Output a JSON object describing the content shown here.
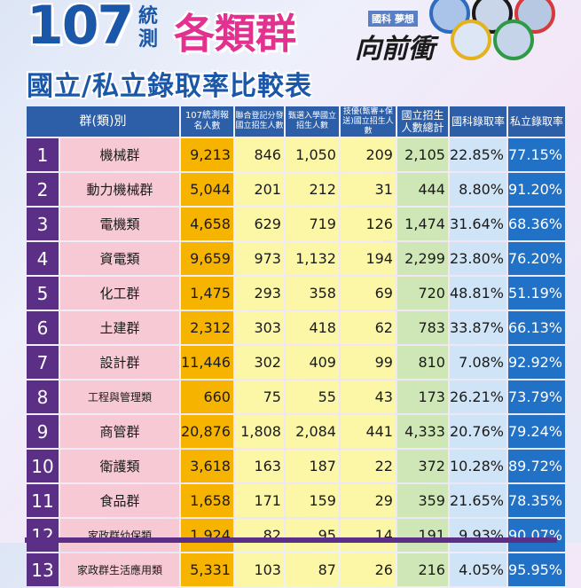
{
  "header": {
    "year": "107",
    "exam": "統測",
    "groups": "各類群",
    "title": "國立/私立錄取率比較表",
    "slogan": "國科 夢想",
    "brand": "向前衝"
  },
  "colors": {
    "title_blue": "#1b57a8",
    "title_pink": "#e2318f",
    "number_cell": "#5b2f86",
    "name_cell": "#f6c9d5",
    "registrants_cell": "#f6b400",
    "quota_cells": "#fbf7a6",
    "total_cell": "#cfe7b6",
    "public_rate_cell": "#cfe4f6",
    "private_rate_cell": "#2171c7"
  },
  "table": {
    "headers": {
      "group": "群(類)別",
      "registrants": "107統測報名人數",
      "joint": "聯合登記分發國立招生人數",
      "selection": "甄選入學國立招生人數",
      "skills": "技優(甄審+保送)國立招生人數",
      "total": "國立招生人數總計",
      "public_rate": "國科錄取率",
      "private_rate": "私立錄取率"
    },
    "rows": [
      {
        "no": "1",
        "name": "機械群",
        "registrants": "9,213",
        "joint": "846",
        "selection": "1,050",
        "skills": "209",
        "total": "2,105",
        "public_rate": "22.85%",
        "private_rate": "77.15%"
      },
      {
        "no": "2",
        "name": "動力機械群",
        "registrants": "5,044",
        "joint": "201",
        "selection": "212",
        "skills": "31",
        "total": "444",
        "public_rate": "8.80%",
        "private_rate": "91.20%"
      },
      {
        "no": "3",
        "name": "電機類",
        "registrants": "4,658",
        "joint": "629",
        "selection": "719",
        "skills": "126",
        "total": "1,474",
        "public_rate": "31.64%",
        "private_rate": "68.36%"
      },
      {
        "no": "4",
        "name": "資電類",
        "registrants": "9,659",
        "joint": "973",
        "selection": "1,132",
        "skills": "194",
        "total": "2,299",
        "public_rate": "23.80%",
        "private_rate": "76.20%"
      },
      {
        "no": "5",
        "name": "化工群",
        "registrants": "1,475",
        "joint": "293",
        "selection": "358",
        "skills": "69",
        "total": "720",
        "public_rate": "48.81%",
        "private_rate": "51.19%"
      },
      {
        "no": "6",
        "name": "土建群",
        "registrants": "2,312",
        "joint": "303",
        "selection": "418",
        "skills": "62",
        "total": "783",
        "public_rate": "33.87%",
        "private_rate": "66.13%"
      },
      {
        "no": "7",
        "name": "設計群",
        "registrants": "11,446",
        "joint": "302",
        "selection": "409",
        "skills": "99",
        "total": "810",
        "public_rate": "7.08%",
        "private_rate": "92.92%"
      },
      {
        "no": "8",
        "name": "工程與管理類",
        "registrants": "660",
        "joint": "75",
        "selection": "55",
        "skills": "43",
        "total": "173",
        "public_rate": "26.21%",
        "private_rate": "73.79%"
      },
      {
        "no": "9",
        "name": "商管群",
        "registrants": "20,876",
        "joint": "1,808",
        "selection": "2,084",
        "skills": "441",
        "total": "4,333",
        "public_rate": "20.76%",
        "private_rate": "79.24%"
      },
      {
        "no": "10",
        "name": "衛護類",
        "registrants": "3,618",
        "joint": "163",
        "selection": "187",
        "skills": "22",
        "total": "372",
        "public_rate": "10.28%",
        "private_rate": "89.72%"
      },
      {
        "no": "11",
        "name": "食品群",
        "registrants": "1,658",
        "joint": "171",
        "selection": "159",
        "skills": "29",
        "total": "359",
        "public_rate": "21.65%",
        "private_rate": "78.35%"
      },
      {
        "no": "12",
        "name": "家政群幼保類",
        "registrants": "1,924",
        "joint": "82",
        "selection": "95",
        "skills": "14",
        "total": "191",
        "public_rate": "9.93%",
        "private_rate": "90.07%"
      },
      {
        "no": "13",
        "name": "家政群生活應用類",
        "registrants": "5,331",
        "joint": "103",
        "selection": "87",
        "skills": "26",
        "total": "216",
        "public_rate": "4.05%",
        "private_rate": "95.95%"
      }
    ]
  }
}
